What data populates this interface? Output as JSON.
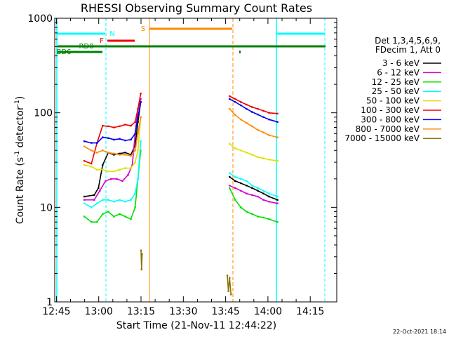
{
  "chart_data": {
    "type": "line",
    "title": "RHESSI Observing Summary Count Rates",
    "xlabel": "Start Time (21-Nov-11 12:44:22)",
    "ylabel": "Count Rate (s",
    "ylabel_sup": "-1",
    "ylabel_mid": " detector",
    "ylabel_sup2": "-1",
    "ylabel_end": ")",
    "y_scale": "log",
    "ylim": [
      1,
      1000
    ],
    "xlim_minutes": [
      0,
      100
    ],
    "x_ticks": [
      {
        "label": "12:45",
        "m": 0.6
      },
      {
        "label": "13:00",
        "m": 15.6
      },
      {
        "label": "13:15",
        "m": 30.6
      },
      {
        "label": "13:30",
        "m": 45.6
      },
      {
        "label": "13:45",
        "m": 60.6
      },
      {
        "label": "14:00",
        "m": 75.6
      },
      {
        "label": "14:15",
        "m": 90.6
      }
    ],
    "y_ticks": [
      {
        "label": "1",
        "v": 1
      },
      {
        "label": "10",
        "v": 10
      },
      {
        "label": "100",
        "v": 100
      },
      {
        "label": "1000",
        "v": 1000
      }
    ],
    "legend_header": [
      "Det 1,3,4,5,6,9,",
      "FDecim 1, Att 0"
    ],
    "legend_position": "right",
    "series": [
      {
        "name": "3 - 6 keV",
        "color": "#000000",
        "seg1": [
          [
            10.5,
            13
          ],
          [
            14,
            13.5
          ],
          [
            15.5,
            16
          ],
          [
            17,
            28
          ],
          [
            19,
            38
          ],
          [
            21,
            36
          ],
          [
            23,
            37
          ],
          [
            25,
            38
          ],
          [
            27,
            36
          ],
          [
            28.5,
            45
          ],
          [
            29.5,
            80
          ],
          [
            30.5,
            130
          ]
        ],
        "seg2": [
          [
            62,
            21
          ],
          [
            64,
            19
          ],
          [
            66,
            18
          ],
          [
            68,
            17
          ],
          [
            70,
            16
          ],
          [
            72,
            15
          ],
          [
            74,
            14
          ],
          [
            76,
            13
          ],
          [
            79,
            12
          ]
        ]
      },
      {
        "name": "6 - 12 keV",
        "color": "#d400d4",
        "seg1": [
          [
            10.5,
            12
          ],
          [
            14,
            12
          ],
          [
            16,
            15
          ],
          [
            18,
            19
          ],
          [
            20,
            20
          ],
          [
            22,
            20
          ],
          [
            24,
            19
          ],
          [
            26,
            22
          ],
          [
            27.5,
            28
          ],
          [
            28.5,
            60
          ],
          [
            29.5,
            110
          ],
          [
            30.5,
            140
          ]
        ],
        "seg2": [
          [
            62,
            17
          ],
          [
            64,
            16
          ],
          [
            66,
            15
          ],
          [
            68,
            14
          ],
          [
            70,
            13.5
          ],
          [
            72,
            13
          ],
          [
            74,
            12
          ],
          [
            76,
            11.5
          ],
          [
            79,
            11
          ]
        ]
      },
      {
        "name": "12 - 25 keV",
        "color": "#00e000",
        "seg1": [
          [
            10.5,
            8
          ],
          [
            13,
            7
          ],
          [
            15,
            7
          ],
          [
            17,
            8.5
          ],
          [
            19,
            9
          ],
          [
            21,
            8
          ],
          [
            23,
            8.5
          ],
          [
            25,
            8
          ],
          [
            27,
            7.5
          ],
          [
            28.5,
            10
          ],
          [
            29.5,
            20
          ],
          [
            30.5,
            40
          ]
        ],
        "seg2": [
          [
            62,
            16
          ],
          [
            64,
            12
          ],
          [
            66,
            10
          ],
          [
            68,
            9
          ],
          [
            70,
            8.5
          ],
          [
            72,
            8
          ],
          [
            74,
            7.8
          ],
          [
            76,
            7.5
          ],
          [
            79,
            7
          ]
        ]
      },
      {
        "name": "25 - 50 keV",
        "color": "#00ffff",
        "seg1": [
          [
            10.5,
            11
          ],
          [
            13,
            10
          ],
          [
            15,
            11
          ],
          [
            17,
            12
          ],
          [
            19,
            12
          ],
          [
            21,
            11.5
          ],
          [
            23,
            12
          ],
          [
            25,
            11.5
          ],
          [
            27,
            12
          ],
          [
            28.5,
            14
          ],
          [
            29.5,
            20
          ],
          [
            30.5,
            50
          ]
        ],
        "seg2": [
          [
            62,
            23
          ],
          [
            64,
            21
          ],
          [
            66,
            20
          ],
          [
            68,
            19
          ],
          [
            70,
            17
          ],
          [
            72,
            16
          ],
          [
            74,
            15
          ],
          [
            76,
            14
          ],
          [
            79,
            13
          ]
        ]
      },
      {
        "name": "50 - 100 keV",
        "color": "#e0e000",
        "seg1": [
          [
            10.5,
            28
          ],
          [
            13,
            27
          ],
          [
            15,
            25
          ],
          [
            17,
            25
          ],
          [
            19,
            24
          ],
          [
            21,
            24
          ],
          [
            23,
            25
          ],
          [
            25,
            26
          ],
          [
            27,
            26
          ],
          [
            28.5,
            30
          ],
          [
            29.5,
            40
          ],
          [
            30.5,
            90
          ]
        ],
        "seg2": [
          [
            62,
            47
          ],
          [
            64,
            42
          ],
          [
            66,
            40
          ],
          [
            68,
            38
          ],
          [
            70,
            36
          ],
          [
            72,
            34
          ],
          [
            74,
            33
          ],
          [
            76,
            32
          ],
          [
            79,
            31
          ]
        ]
      },
      {
        "name": "100 - 300 keV",
        "color": "#ee0000",
        "seg1": [
          [
            10.5,
            31
          ],
          [
            13,
            29
          ],
          [
            15,
            48
          ],
          [
            17,
            73
          ],
          [
            19,
            72
          ],
          [
            21,
            70
          ],
          [
            23,
            72
          ],
          [
            25,
            75
          ],
          [
            27,
            73
          ],
          [
            28.5,
            80
          ],
          [
            29.5,
            110
          ],
          [
            30.5,
            160
          ]
        ],
        "seg2": [
          [
            62,
            150
          ],
          [
            64,
            140
          ],
          [
            66,
            130
          ],
          [
            68,
            122
          ],
          [
            70,
            115
          ],
          [
            72,
            110
          ],
          [
            74,
            105
          ],
          [
            76,
            100
          ],
          [
            79,
            98
          ]
        ]
      },
      {
        "name": "300 - 800 keV",
        "color": "#0000ee",
        "seg1": [
          [
            10.5,
            50
          ],
          [
            13,
            48
          ],
          [
            15,
            48
          ],
          [
            17,
            55
          ],
          [
            19,
            54
          ],
          [
            21,
            52
          ],
          [
            23,
            53
          ],
          [
            25,
            51
          ],
          [
            27,
            52
          ],
          [
            28.5,
            60
          ],
          [
            29.5,
            90
          ],
          [
            30.5,
            130
          ]
        ],
        "seg2": [
          [
            62,
            140
          ],
          [
            64,
            130
          ],
          [
            66,
            120
          ],
          [
            68,
            110
          ],
          [
            70,
            102
          ],
          [
            72,
            96
          ],
          [
            74,
            90
          ],
          [
            76,
            85
          ],
          [
            79,
            80
          ]
        ]
      },
      {
        "name": "800 - 7000 keV",
        "color": "#ff8800",
        "seg1": [
          [
            10.5,
            44
          ],
          [
            13,
            40
          ],
          [
            15,
            38
          ],
          [
            17,
            40
          ],
          [
            19,
            38
          ],
          [
            21,
            37
          ],
          [
            23,
            36
          ],
          [
            25,
            36
          ],
          [
            27,
            35
          ],
          [
            28.5,
            40
          ],
          [
            29.5,
            60
          ],
          [
            30.5,
            90
          ]
        ],
        "seg2": [
          [
            62,
            110
          ],
          [
            64,
            95
          ],
          [
            66,
            85
          ],
          [
            68,
            78
          ],
          [
            70,
            72
          ],
          [
            72,
            66
          ],
          [
            74,
            62
          ],
          [
            76,
            58
          ],
          [
            79,
            55
          ]
        ]
      },
      {
        "name": "7000 - 15000 keV",
        "color": "#8b7500",
        "seg1": [
          [
            30.6,
            3.5
          ],
          [
            30.8,
            2.2
          ],
          [
            31,
            3.2
          ]
        ],
        "seg2": [
          [
            61.2,
            1.9
          ],
          [
            61.6,
            1.3
          ],
          [
            62,
            1.8
          ],
          [
            62.5,
            1.2
          ]
        ]
      }
    ],
    "annotations": [
      {
        "label": "N",
        "color": "#00ffff"
      },
      {
        "label": "F",
        "color": "#ee0000"
      },
      {
        "label": "S",
        "color": "#ff8800"
      },
      {
        "label": "RD0",
        "color": "#007f00"
      },
      {
        "label": "BD6",
        "color": "#007f00"
      }
    ],
    "timestamp": "22-Oct-2021 18:14"
  }
}
